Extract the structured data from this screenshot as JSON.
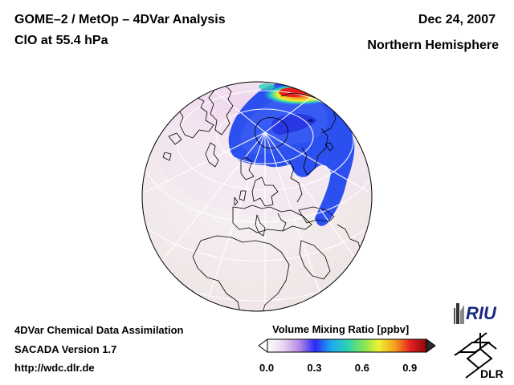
{
  "header": {
    "title": "GOME–2 / MetOp – 4DVar Analysis",
    "subtitle": "ClO at 55.4 hPa",
    "date": "Dec 24, 2007",
    "region": "Northern Hemisphere"
  },
  "footer": {
    "line1": "4DVar Chemical Data Assimilation",
    "line2": "SACADA Version 1.7",
    "line3": "http://wdc.dlr.de"
  },
  "colorbar": {
    "title": "Volume Mixing Ratio [ppbv]",
    "min": 0.0,
    "max": 1.0,
    "ticks": [
      "0.0",
      "0.3",
      "0.6",
      "0.9"
    ],
    "tick_values": [
      0.0,
      0.3,
      0.6,
      0.9
    ],
    "colors": [
      "#ffffff",
      "#e9d6ee",
      "#b48ce6",
      "#2a2af5",
      "#1ea8f0",
      "#28d2b4",
      "#7de65a",
      "#f0f032",
      "#f5a01e",
      "#e61e1e",
      "#8c0a0a"
    ],
    "extend": "both"
  },
  "logos": {
    "riu": "RIU",
    "dlr": "DLR"
  },
  "map": {
    "projection": "orthographic",
    "colors": {
      "ocean_land": "#f4eeee",
      "coast": "#000000",
      "grid": "#ffffff",
      "low_clo": "#f0c8f0",
      "mid_clo": "#2e50f0",
      "high_clo": "#e61e1e"
    }
  }
}
